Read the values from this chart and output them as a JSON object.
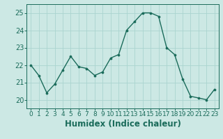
{
  "title": "",
  "xlabel": "Humidex (Indice chaleur)",
  "ylabel": "",
  "x": [
    0,
    1,
    2,
    3,
    4,
    5,
    6,
    7,
    8,
    9,
    10,
    11,
    12,
    13,
    14,
    15,
    16,
    17,
    18,
    19,
    20,
    21,
    22,
    23
  ],
  "y": [
    22.0,
    21.4,
    20.4,
    20.9,
    21.7,
    22.5,
    21.9,
    21.8,
    21.4,
    21.6,
    22.4,
    22.6,
    24.0,
    24.5,
    25.0,
    25.0,
    24.8,
    23.0,
    22.6,
    21.2,
    20.2,
    20.1,
    20.0,
    20.6
  ],
  "line_color": "#1a6b5a",
  "marker_color": "#1a6b5a",
  "bg_color": "#cce8e4",
  "grid_color": "#aad4cf",
  "axis_color": "#1a6b5a",
  "ylim": [
    19.5,
    25.5
  ],
  "yticks": [
    20,
    21,
    22,
    23,
    24,
    25
  ],
  "xlim": [
    -0.5,
    23.5
  ],
  "xticks": [
    0,
    1,
    2,
    3,
    4,
    5,
    6,
    7,
    8,
    9,
    10,
    11,
    12,
    13,
    14,
    15,
    16,
    17,
    18,
    19,
    20,
    21,
    22,
    23
  ],
  "tick_color": "#1a6b5a",
  "label_fontsize": 8,
  "tick_fontsize": 6.5,
  "xlabel_fontsize": 8.5
}
